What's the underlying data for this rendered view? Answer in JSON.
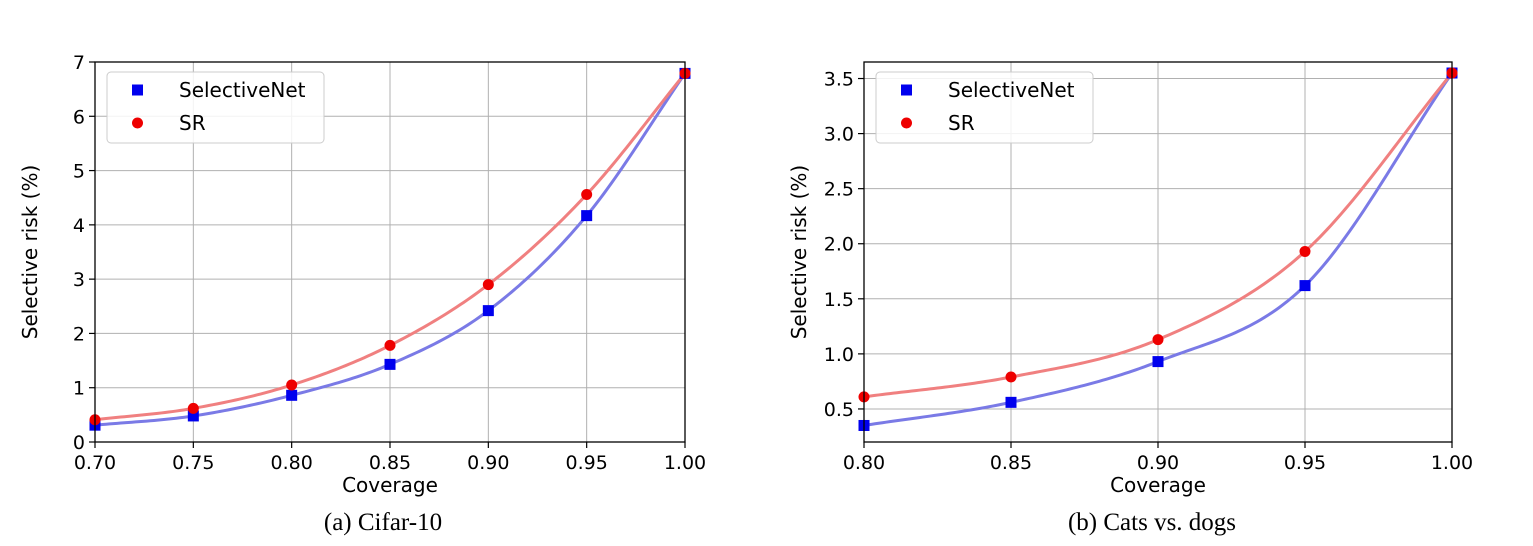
{
  "chart_data": [
    {
      "type": "line",
      "caption": "(a) Cifar-10",
      "xlabel": "Coverage",
      "ylabel": "Selective risk (%)",
      "xlim": [
        0.7,
        1.0
      ],
      "ylim": [
        0,
        7
      ],
      "xticks": [
        0.7,
        0.75,
        0.8,
        0.85,
        0.9,
        0.95,
        1.0
      ],
      "xtick_labels": [
        "0.70",
        "0.75",
        "0.80",
        "0.85",
        "0.90",
        "0.95",
        "1.00"
      ],
      "yticks": [
        0,
        1,
        2,
        3,
        4,
        5,
        6,
        7
      ],
      "ytick_labels": [
        "0",
        "1",
        "2",
        "3",
        "4",
        "5",
        "6",
        "7"
      ],
      "grid": true,
      "legend_position": "top-left",
      "x": [
        0.7,
        0.75,
        0.8,
        0.85,
        0.9,
        0.95,
        1.0
      ],
      "series": [
        {
          "name": "SelectiveNet",
          "marker": "square",
          "marker_color": "#0000ee",
          "line_color": "#7a7ae6",
          "values": [
            0.31,
            0.48,
            0.86,
            1.43,
            2.42,
            4.17,
            6.79
          ]
        },
        {
          "name": "SR",
          "marker": "circle",
          "marker_color": "#ee0000",
          "line_color": "#f08080",
          "values": [
            0.41,
            0.62,
            1.05,
            1.78,
            2.9,
            4.56,
            6.79
          ]
        }
      ]
    },
    {
      "type": "line",
      "caption": "(b) Cats vs. dogs",
      "xlabel": "Coverage",
      "ylabel": "Selective risk (%)",
      "xlim": [
        0.8,
        1.0
      ],
      "ylim": [
        0.2,
        3.65
      ],
      "xticks": [
        0.8,
        0.85,
        0.9,
        0.95,
        1.0
      ],
      "xtick_labels": [
        "0.80",
        "0.85",
        "0.90",
        "0.95",
        "1.00"
      ],
      "yticks": [
        0.5,
        1.0,
        1.5,
        2.0,
        2.5,
        3.0,
        3.5
      ],
      "ytick_labels": [
        "0.5",
        "1.0",
        "1.5",
        "2.0",
        "2.5",
        "3.0",
        "3.5"
      ],
      "grid": true,
      "legend_position": "top-left",
      "x": [
        0.8,
        0.85,
        0.9,
        0.95,
        1.0
      ],
      "series": [
        {
          "name": "SelectiveNet",
          "marker": "square",
          "marker_color": "#0000ee",
          "line_color": "#7a7ae6",
          "values": [
            0.35,
            0.56,
            0.93,
            1.62,
            3.55
          ]
        },
        {
          "name": "SR",
          "marker": "circle",
          "marker_color": "#ee0000",
          "line_color": "#f08080",
          "values": [
            0.61,
            0.79,
            1.13,
            1.93,
            3.55
          ]
        }
      ]
    }
  ]
}
